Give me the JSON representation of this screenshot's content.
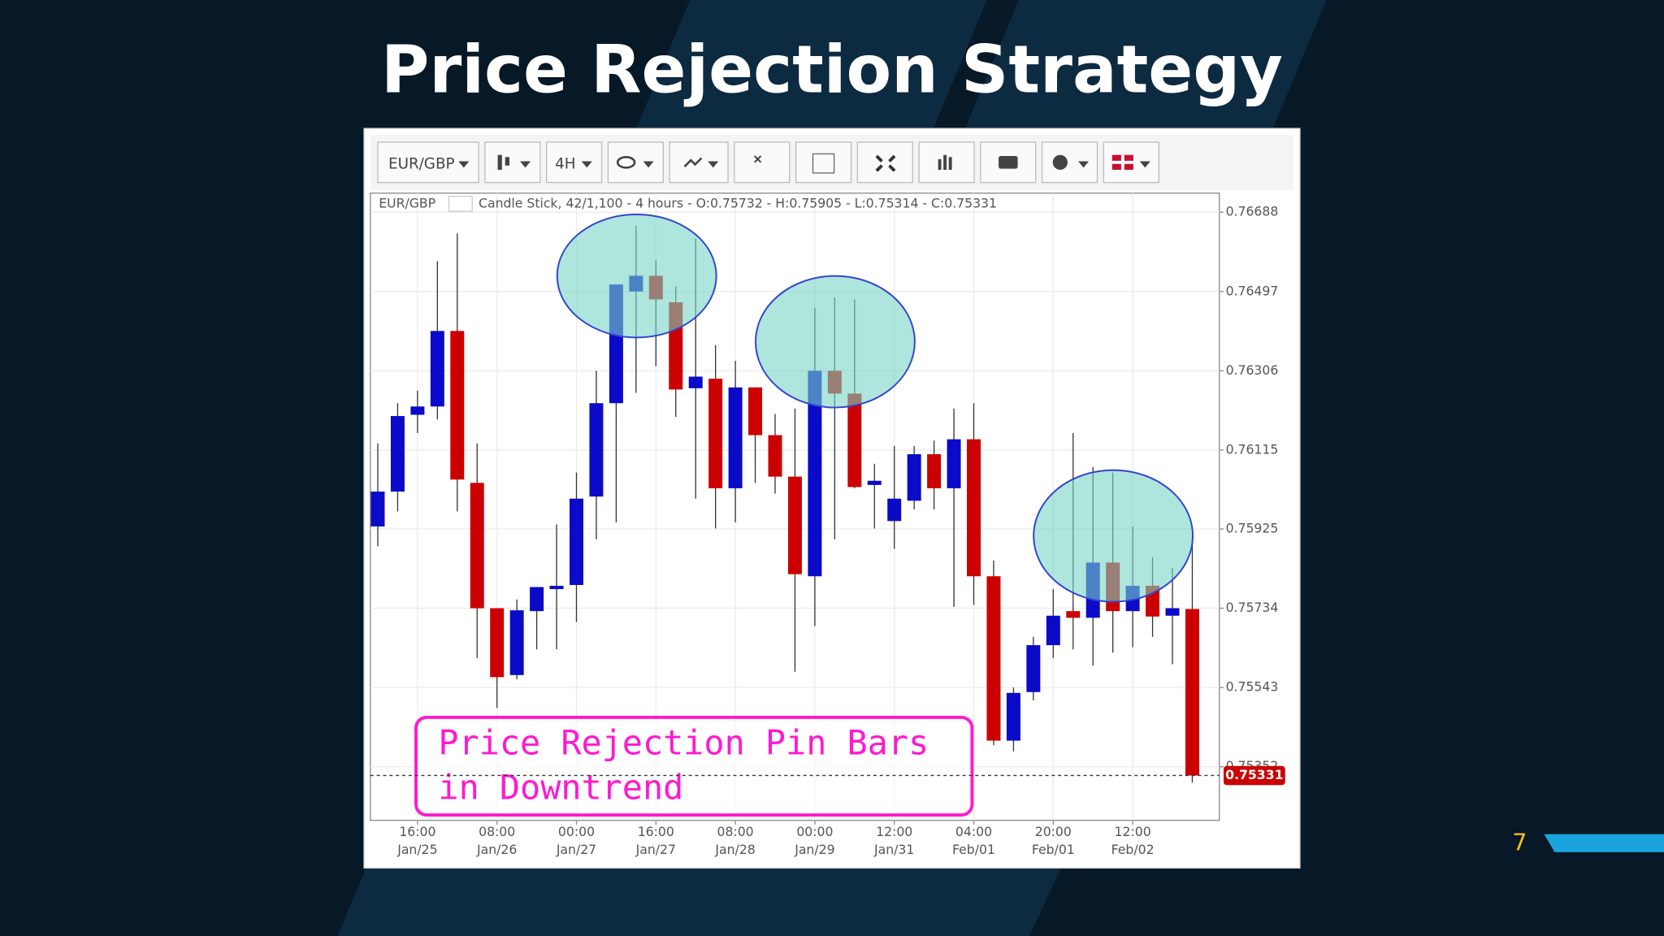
{
  "slide": {
    "title": "Price Rejection Strategy",
    "page_number": 7
  },
  "toolbar": {
    "symbol": "EUR/GBP",
    "interval": "4H"
  },
  "chart_data": {
    "type": "candlestick",
    "symbol": "EUR/GBP",
    "info": "Candle Stick, 42/1,100 - 4 hours - O:0.75732 - H:0.75905 - L:0.75314 - C:0.75331",
    "annotation": [
      "Price Rejection Pin Bars",
      "in Downtrend"
    ],
    "categories": [
      null,
      null,
      "16:00 Jan/25",
      null,
      null,
      null,
      "08:00 Jan/26",
      null,
      null,
      null,
      "00:00 Jan/27",
      null,
      null,
      null,
      "16:00 Jan/27",
      null,
      null,
      null,
      "08:00 Jan/28",
      null,
      null,
      null,
      "00:00 Jan/29",
      null,
      null,
      null,
      "12:00 Jan/31",
      null,
      null,
      null,
      "04:00 Feb/01",
      null,
      null,
      null,
      "20:00 Feb/01",
      null,
      null,
      null,
      "12:00 Feb/02",
      null,
      null,
      null
    ],
    "open": [
      0.75931,
      0.76015,
      0.762,
      0.7622,
      0.76402,
      0.76036,
      0.75734,
      0.75573,
      0.75727,
      0.7578,
      0.7579,
      0.76003,
      0.76228,
      0.76497,
      0.76535,
      0.76471,
      0.76264,
      0.76287,
      0.76023,
      0.76266,
      0.76151,
      0.76051,
      0.75811,
      0.76306,
      0.76251,
      0.76031,
      0.75944,
      0.75993,
      0.76105,
      0.76023,
      0.76141,
      0.75811,
      0.75415,
      0.75532,
      0.75645,
      0.75727,
      0.75711,
      0.75844,
      0.75727,
      0.75788,
      0.75716,
      0.75732
    ],
    "high": [
      0.76131,
      0.76228,
      0.76258,
      0.7657,
      0.76637,
      0.76131,
      0.75734,
      0.75755,
      0.75785,
      0.75936,
      0.76061,
      0.76306,
      0.76514,
      0.76655,
      0.76573,
      0.76509,
      0.76624,
      0.76368,
      0.7633,
      0.76266,
      0.76202,
      0.76215,
      0.76458,
      0.76483,
      0.76478,
      0.76082,
      0.76125,
      0.76125,
      0.76138,
      0.76215,
      0.76228,
      0.75849,
      0.75543,
      0.75665,
      0.7578,
      0.76156,
      0.76074,
      0.76061,
      0.75931,
      0.75857,
      0.75831,
      0.75905
    ],
    "low": [
      0.75883,
      0.75967,
      0.76156,
      0.76189,
      0.75967,
      0.75614,
      0.75494,
      0.75563,
      0.75635,
      0.75635,
      0.75701,
      0.759,
      0.75941,
      0.76253,
      0.76317,
      0.76195,
      0.75998,
      0.75926,
      0.75941,
      0.76036,
      0.7601,
      0.75581,
      0.75691,
      0.759,
      0.76023,
      0.75926,
      0.75877,
      0.75972,
      0.75972,
      0.75737,
      0.75742,
      0.75404,
      0.75389,
      0.75512,
      0.75614,
      0.75635,
      0.75596,
      0.75627,
      0.7564,
      0.75665,
      0.75599,
      0.75314
    ],
    "close": [
      0.76015,
      0.76197,
      0.7622,
      0.76402,
      0.76044,
      0.75734,
      0.75568,
      0.75729,
      0.75785,
      0.75788,
      0.75998,
      0.76228,
      0.76514,
      0.76535,
      0.76478,
      0.76261,
      0.76292,
      0.76023,
      0.76266,
      0.76151,
      0.76051,
      0.75816,
      0.76306,
      0.76251,
      0.76026,
      0.76041,
      0.75998,
      0.76105,
      0.76023,
      0.76141,
      0.75811,
      0.75415,
      0.7553,
      0.75645,
      0.75716,
      0.75711,
      0.75844,
      0.75727,
      0.75788,
      0.75714,
      0.75734,
      0.75331
    ],
    "up_color": "#0a0ac8",
    "down_color": "#cc0000",
    "ylim": [
      0.75223,
      0.76734
    ],
    "yticks": [
      0.75352,
      0.75543,
      0.75734,
      0.75925,
      0.76115,
      0.76306,
      0.76497,
      0.76688
    ],
    "grid": true
  }
}
